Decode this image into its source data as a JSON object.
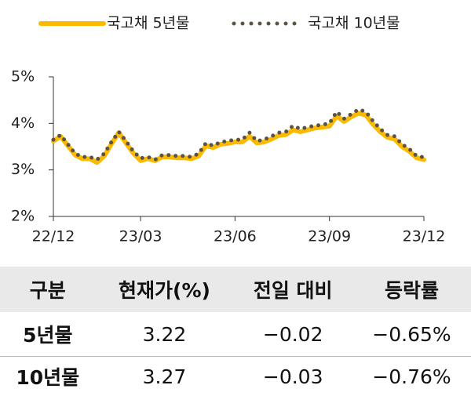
{
  "chart_data": {
    "type": "line",
    "categories": [
      "22/12",
      null,
      null,
      null,
      null,
      null,
      null,
      null,
      null,
      null,
      null,
      null,
      "23/03",
      null,
      null,
      null,
      null,
      null,
      null,
      null,
      null,
      null,
      null,
      null,
      null,
      "23/06",
      null,
      null,
      null,
      null,
      null,
      null,
      null,
      null,
      null,
      null,
      null,
      null,
      "23/09",
      null,
      null,
      null,
      null,
      null,
      null,
      null,
      null,
      null,
      null,
      null,
      null,
      "23/12"
    ],
    "series": [
      {
        "name": "국고채 5년물",
        "color": "#fbb900",
        "style": "solid",
        "values": [
          3.62,
          3.72,
          3.52,
          3.32,
          3.24,
          3.24,
          3.16,
          3.3,
          3.56,
          3.8,
          3.58,
          3.36,
          3.2,
          3.24,
          3.2,
          3.28,
          3.28,
          3.26,
          3.26,
          3.24,
          3.3,
          3.52,
          3.48,
          3.55,
          3.57,
          3.6,
          3.6,
          3.72,
          3.58,
          3.6,
          3.66,
          3.74,
          3.76,
          3.86,
          3.82,
          3.86,
          3.9,
          3.92,
          3.94,
          4.16,
          4.04,
          4.14,
          4.22,
          4.18,
          3.98,
          3.82,
          3.7,
          3.66,
          3.5,
          3.4,
          3.26,
          3.22
        ]
      },
      {
        "name": "국고채 10년물",
        "color": "#5b5446",
        "style": "dotted",
        "values": [
          3.65,
          3.75,
          3.55,
          3.35,
          3.28,
          3.28,
          3.22,
          3.35,
          3.6,
          3.82,
          3.62,
          3.4,
          3.25,
          3.28,
          3.22,
          3.32,
          3.32,
          3.3,
          3.3,
          3.28,
          3.35,
          3.58,
          3.52,
          3.6,
          3.62,
          3.65,
          3.65,
          3.8,
          3.62,
          3.65,
          3.72,
          3.8,
          3.82,
          3.95,
          3.88,
          3.92,
          3.95,
          3.97,
          4.0,
          4.25,
          4.1,
          4.2,
          4.3,
          4.25,
          4.05,
          3.88,
          3.75,
          3.72,
          3.55,
          3.45,
          3.3,
          3.27
        ]
      }
    ],
    "ylim": [
      2,
      5
    ],
    "yticks": [
      {
        "value": 2,
        "label": "2%"
      },
      {
        "value": 3,
        "label": "3%"
      },
      {
        "value": 4,
        "label": "4%"
      },
      {
        "value": 5,
        "label": "5%"
      }
    ]
  },
  "table": {
    "header": [
      "구분",
      "현재가(%)",
      "전일 대비",
      "등락률"
    ],
    "rows": [
      [
        "5년물",
        "3.22",
        "−0.02",
        "−0.65%"
      ],
      [
        "10년물",
        "3.27",
        "−0.03",
        "−0.76%"
      ]
    ]
  }
}
